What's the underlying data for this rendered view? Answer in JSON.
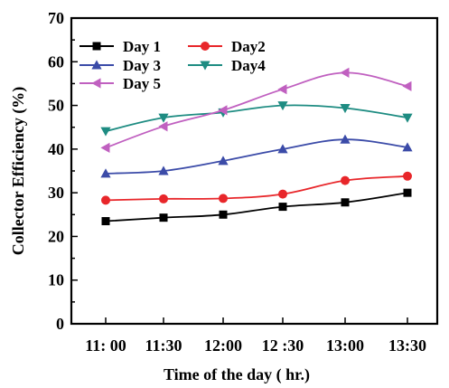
{
  "chart_data": {
    "type": "line",
    "xlabel": "Time of the day ( hr.)",
    "ylabel": "Collector Efficiency (%)",
    "categories": [
      "11: 00",
      "11:30",
      "12:00",
      "12 :30",
      "13:00",
      "13:30"
    ],
    "ylim": [
      0,
      70
    ],
    "yticks": [
      "0",
      "10",
      "20",
      "30",
      "40",
      "50",
      "60",
      "70"
    ],
    "grid": false,
    "legend_position": "top-left",
    "series": [
      {
        "name": "Day 1",
        "color": "#000000",
        "marker": "square",
        "values": [
          23.5,
          24.3,
          25.0,
          26.8,
          27.8,
          30.0
        ]
      },
      {
        "name": "Day2",
        "color": "#e8262a",
        "marker": "circle",
        "values": [
          28.3,
          28.6,
          28.7,
          29.7,
          32.8,
          33.8
        ]
      },
      {
        "name": "Day 3",
        "color": "#3b4ba8",
        "marker": "triangle-up",
        "values": [
          34.4,
          35.0,
          37.3,
          40.0,
          42.2,
          40.4
        ]
      },
      {
        "name": "Day4",
        "color": "#1e8c82",
        "marker": "triangle-down",
        "values": [
          44.1,
          47.2,
          48.4,
          50.0,
          49.4,
          47.2
        ]
      },
      {
        "name": "Day 5",
        "color": "#c060c0",
        "marker": "triangle-left",
        "values": [
          40.3,
          45.2,
          48.9,
          53.7,
          57.5,
          54.4
        ]
      }
    ]
  }
}
